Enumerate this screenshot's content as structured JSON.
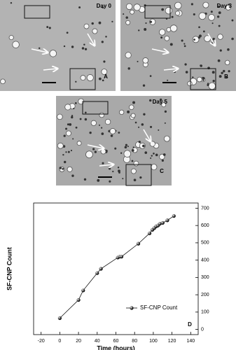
{
  "images": [
    {
      "day": "Day 0",
      "panel": "A"
    },
    {
      "day": "Day 3",
      "panel": "B"
    },
    {
      "day": "Day 5",
      "panel": "C"
    }
  ],
  "chart_data": {
    "type": "line",
    "panel": "D",
    "x_label": "Time (hours)",
    "y_label": "SF-CNP Count",
    "x": [
      0,
      20,
      25,
      40,
      44,
      62,
      64,
      66,
      84,
      96,
      99,
      101,
      103,
      105,
      107,
      110,
      115,
      122
    ],
    "series": [
      {
        "name": "SF-CNP Count",
        "color": "#111111",
        "values": [
          65,
          170,
          225,
          325,
          350,
          415,
          420,
          420,
          495,
          555,
          575,
          585,
          595,
          600,
          610,
          615,
          630,
          655
        ]
      }
    ],
    "xlim": [
      -28,
      148
    ],
    "xticks": [
      -20,
      0,
      20,
      40,
      60,
      80,
      100,
      120,
      140
    ],
    "ylim": [
      -30,
      730
    ],
    "yticks": [
      0,
      100,
      200,
      300,
      400,
      500,
      600,
      700
    ],
    "legend": "lower-right"
  }
}
